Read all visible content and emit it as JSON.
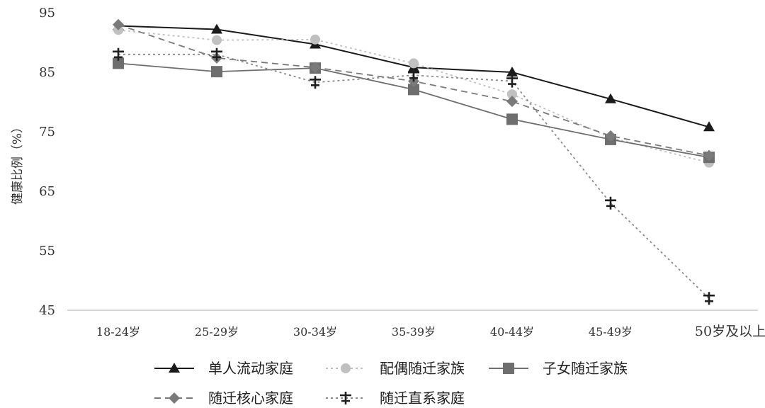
{
  "chart_data": {
    "type": "line",
    "title": "",
    "xlabel": "",
    "ylabel": "健康比例（%）",
    "categories": [
      "18-24岁",
      "25-29岁",
      "30-34岁",
      "35-39岁",
      "40-44岁",
      "45-49岁",
      "50岁及以上"
    ],
    "yticks": [
      "95",
      "85",
      "75",
      "65",
      "55",
      "45"
    ],
    "ylim": [
      45,
      95
    ],
    "grid": false,
    "legend_position": "bottom",
    "series": [
      {
        "name": "单人流动家庭",
        "values": [
          92.8,
          92.2,
          89.7,
          85.8,
          85.0,
          80.5,
          75.8
        ],
        "color": "#1a1a1a",
        "dash": "solid",
        "marker": "triangle"
      },
      {
        "name": "配偶随迁家族",
        "values": [
          92.1,
          90.4,
          90.5,
          86.5,
          81.3,
          74.0,
          69.8
        ],
        "color": "#c0c0c0",
        "dash": "dotted",
        "marker": "circle"
      },
      {
        "name": "子女随迁家族",
        "values": [
          86.5,
          85.1,
          85.7,
          82.1,
          77.1,
          73.7,
          70.7
        ],
        "color": "#6e6e6e",
        "dash": "solid",
        "marker": "square"
      },
      {
        "name": "随迁核心家庭",
        "values": [
          93.0,
          87.4,
          85.8,
          83.5,
          80.1,
          74.3,
          71.0
        ],
        "color": "#7a7a7a",
        "dash": "dashed",
        "marker": "diamond"
      },
      {
        "name": "随迁直系家庭",
        "values": [
          88.0,
          88.0,
          83.3,
          84.5,
          83.5,
          63.0,
          47.0
        ],
        "color": "#8a8a8a",
        "dash": "dotted",
        "marker": "cross"
      }
    ]
  }
}
